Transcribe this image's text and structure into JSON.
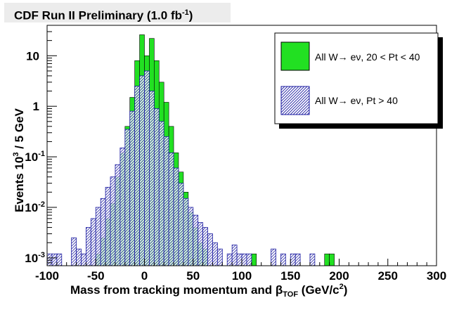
{
  "header": {
    "title_main": "CDF Run II Preliminary (1.0 fb",
    "title_sup": "-1",
    "title_end": ")"
  },
  "chart_data": {
    "type": "histogram",
    "title": "CDF Run II Preliminary (1.0 fb^-1)",
    "xlabel": "Mass from tracking momentum and β_TOF (GeV/c^2)",
    "ylabel": "Events 10^3 / 5 GeV",
    "xlim": [
      -100,
      300
    ],
    "ylim": [
      0.0007,
      40
    ],
    "y_scale": "log",
    "x_ticks": [
      -100,
      -50,
      0,
      50,
      100,
      150,
      200,
      250,
      300
    ],
    "y_ticks": [
      {
        "value": 0.001,
        "base": "10",
        "exp": "-3"
      },
      {
        "value": 0.01,
        "base": "10",
        "exp": "-2"
      },
      {
        "value": 0.1,
        "base": "10",
        "exp": "-1"
      },
      {
        "value": 1,
        "base": "1",
        "exp": ""
      },
      {
        "value": 10,
        "base": "10",
        "exp": ""
      }
    ],
    "legend_position": "top-right",
    "series": [
      {
        "name": "All W→ eν, 20 < Pt < 40",
        "legend_prefix": "All W",
        "legend_suffix": "eν, 20 < Pt < 40",
        "color": "#22e022",
        "style": "solid",
        "bins": [
          [
            -47.5,
            0.0012
          ],
          [
            -42.5,
            0.0025
          ],
          [
            -37.5,
            0.006
          ],
          [
            -32.5,
            0.012
          ],
          [
            -27.5,
            0.04
          ],
          [
            -22.5,
            0.12
          ],
          [
            -17.5,
            0.4
          ],
          [
            -12.5,
            1.5
          ],
          [
            -7.5,
            8
          ],
          [
            -2.5,
            26
          ],
          [
            2.5,
            10
          ],
          [
            7.5,
            22
          ],
          [
            12.5,
            8
          ],
          [
            17.5,
            3
          ],
          [
            22.5,
            1.2
          ],
          [
            27.5,
            0.4
          ],
          [
            32.5,
            0.12
          ],
          [
            37.5,
            0.05
          ],
          [
            42.5,
            0.02
          ],
          [
            47.5,
            0.008
          ],
          [
            52.5,
            0.004
          ],
          [
            57.5,
            0.002
          ],
          [
            62.5,
            0.0015
          ],
          [
            112.5,
            0.0012
          ],
          [
            187.5,
            0.0012
          ],
          [
            192.5,
            0.0012
          ]
        ]
      },
      {
        "name": "All W→ eν,  Pt > 40",
        "legend_prefix": "All W",
        "legend_suffix": "eν,  Pt > 40",
        "color": "#1a1aa0",
        "style": "hatched",
        "bins": [
          [
            -97.5,
            0.0012
          ],
          [
            -92.5,
            0.0012
          ],
          [
            -87.5,
            0.0012
          ],
          [
            -72.5,
            0.0025
          ],
          [
            -67.5,
            0.0015
          ],
          [
            -62.5,
            0.0012
          ],
          [
            -57.5,
            0.004
          ],
          [
            -52.5,
            0.006
          ],
          [
            -47.5,
            0.01
          ],
          [
            -42.5,
            0.015
          ],
          [
            -37.5,
            0.025
          ],
          [
            -32.5,
            0.04
          ],
          [
            -27.5,
            0.07
          ],
          [
            -22.5,
            0.15
          ],
          [
            -17.5,
            0.35
          ],
          [
            -12.5,
            0.8
          ],
          [
            -7.5,
            2.5
          ],
          [
            -2.5,
            4
          ],
          [
            2.5,
            5
          ],
          [
            7.5,
            2
          ],
          [
            12.5,
            0.9
          ],
          [
            17.5,
            0.5
          ],
          [
            22.5,
            0.25
          ],
          [
            27.5,
            0.12
          ],
          [
            32.5,
            0.06
          ],
          [
            37.5,
            0.03
          ],
          [
            42.5,
            0.015
          ],
          [
            47.5,
            0.01
          ],
          [
            52.5,
            0.007
          ],
          [
            57.5,
            0.005
          ],
          [
            62.5,
            0.004
          ],
          [
            67.5,
            0.003
          ],
          [
            72.5,
            0.002
          ],
          [
            77.5,
            0.0015
          ],
          [
            87.5,
            0.0012
          ],
          [
            92.5,
            0.0018
          ],
          [
            97.5,
            0.0012
          ],
          [
            102.5,
            0.0012
          ],
          [
            107.5,
            0.0012
          ],
          [
            132.5,
            0.0015
          ],
          [
            142.5,
            0.0012
          ],
          [
            152.5,
            0.0012
          ],
          [
            157.5,
            0.0012
          ],
          [
            172.5,
            0.0012
          ]
        ]
      }
    ]
  }
}
